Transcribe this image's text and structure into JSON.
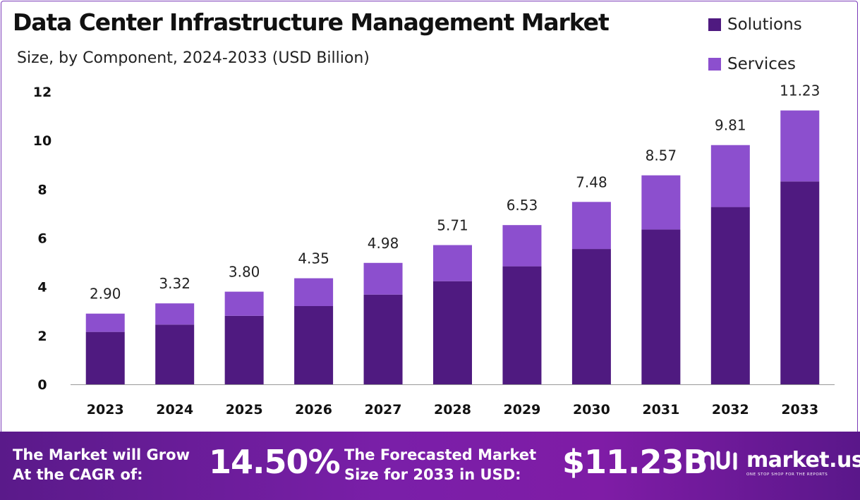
{
  "chart_data": {
    "type": "bar",
    "stacked": true,
    "title": "Data Center Infrastructure Management Market",
    "subtitle": "Size, by Component, 2024-2033 (USD Billion)",
    "categories": [
      "2023",
      "2024",
      "2025",
      "2026",
      "2027",
      "2028",
      "2029",
      "2030",
      "2031",
      "2032",
      "2033"
    ],
    "totals": [
      "2.90",
      "3.32",
      "3.80",
      "4.35",
      "4.98",
      "5.71",
      "6.53",
      "7.48",
      "8.57",
      "9.81",
      "11.23"
    ],
    "series": [
      {
        "name": "Solutions",
        "color": "#4f1a80",
        "values": [
          2.15,
          2.45,
          2.81,
          3.21,
          3.68,
          4.23,
          4.84,
          5.55,
          6.35,
          7.27,
          8.32
        ]
      },
      {
        "name": "Services",
        "color": "#8c4fce",
        "values": [
          0.75,
          0.87,
          0.99,
          1.14,
          1.3,
          1.48,
          1.69,
          1.93,
          2.22,
          2.54,
          2.91
        ]
      }
    ],
    "ylim": [
      0,
      12
    ],
    "yticks": [
      "0",
      "2",
      "4",
      "6",
      "8",
      "10",
      "12"
    ],
    "grid": false,
    "legend_position": "top-right"
  },
  "footer": {
    "cagr_line1": "The Market will Grow",
    "cagr_line2": "At the CAGR of:",
    "cagr_value": "14.50%",
    "forecast_line1": "The Forecasted Market",
    "forecast_line2": "Size for 2033 in USD:",
    "forecast_value": "$11.23B",
    "brand_name": "market.us",
    "brand_tagline": "ONE STOP SHOP FOR THE REPORTS"
  }
}
